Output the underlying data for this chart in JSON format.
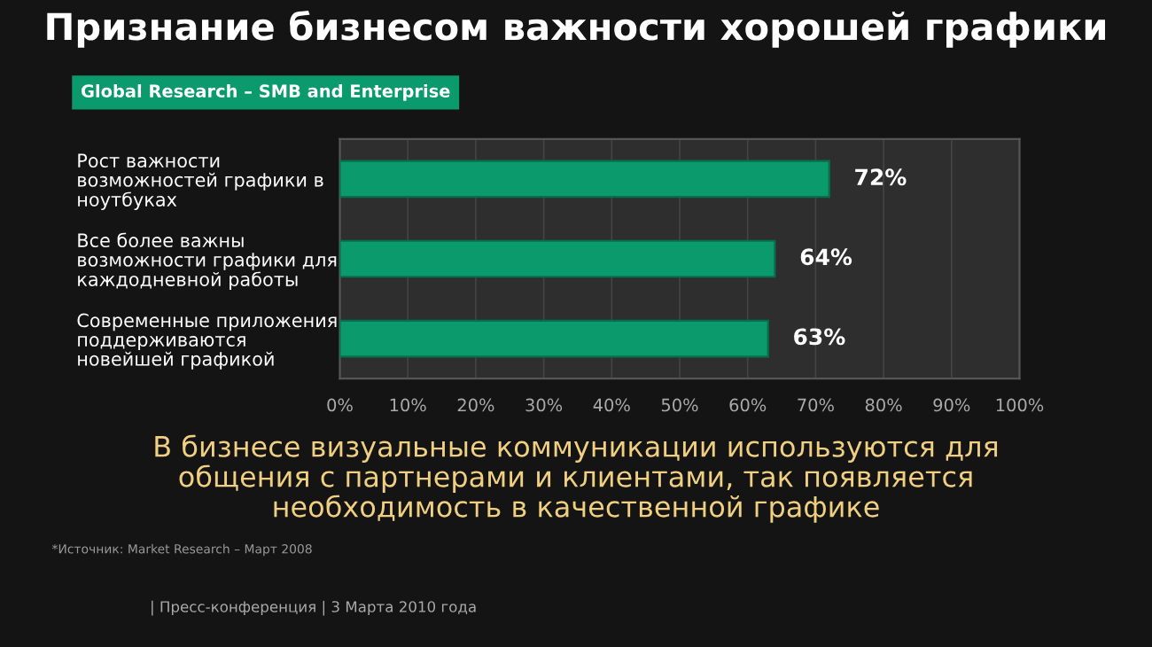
{
  "chart_data": {
    "type": "bar",
    "orientation": "horizontal",
    "title": "Признание бизнесом важности хорошей графики",
    "subtitle": "Global Research – SMB and Enterprise",
    "categories": [
      "Рост важности\nвозможностей графики в\nноутбуках",
      "Все более важны\nвозможности графики для\nкаждодневной работы",
      "Современные приложения\nподдерживаются\nновейшей графикой"
    ],
    "values": [
      72,
      64,
      63
    ],
    "value_labels": [
      "72%",
      "64%",
      "63%"
    ],
    "color": "#0b9a6b",
    "xlim": [
      0,
      100
    ],
    "xticks": [
      {
        "value": 0,
        "label": "0%"
      },
      {
        "value": 10,
        "label": "10%"
      },
      {
        "value": 20,
        "label": "20%"
      },
      {
        "value": 30,
        "label": "30%"
      },
      {
        "value": 40,
        "label": "40%"
      },
      {
        "value": 50,
        "label": "50%"
      },
      {
        "value": 60,
        "label": "60%"
      },
      {
        "value": 70,
        "label": "70%"
      },
      {
        "value": 80,
        "label": "80%"
      },
      {
        "value": 90,
        "label": "90%"
      },
      {
        "value": 100,
        "label": "100%"
      }
    ],
    "grid": "x",
    "annotations": [
      "В бизнесе визуальные коммуникации используются для\nобщения с партнерами и клиентами, так появляется\nнеобходимость в качественной графике",
      "*Источник: Market Research – Март 2008",
      "| Пресс-конференция | 3 Марта 2010 года"
    ]
  }
}
